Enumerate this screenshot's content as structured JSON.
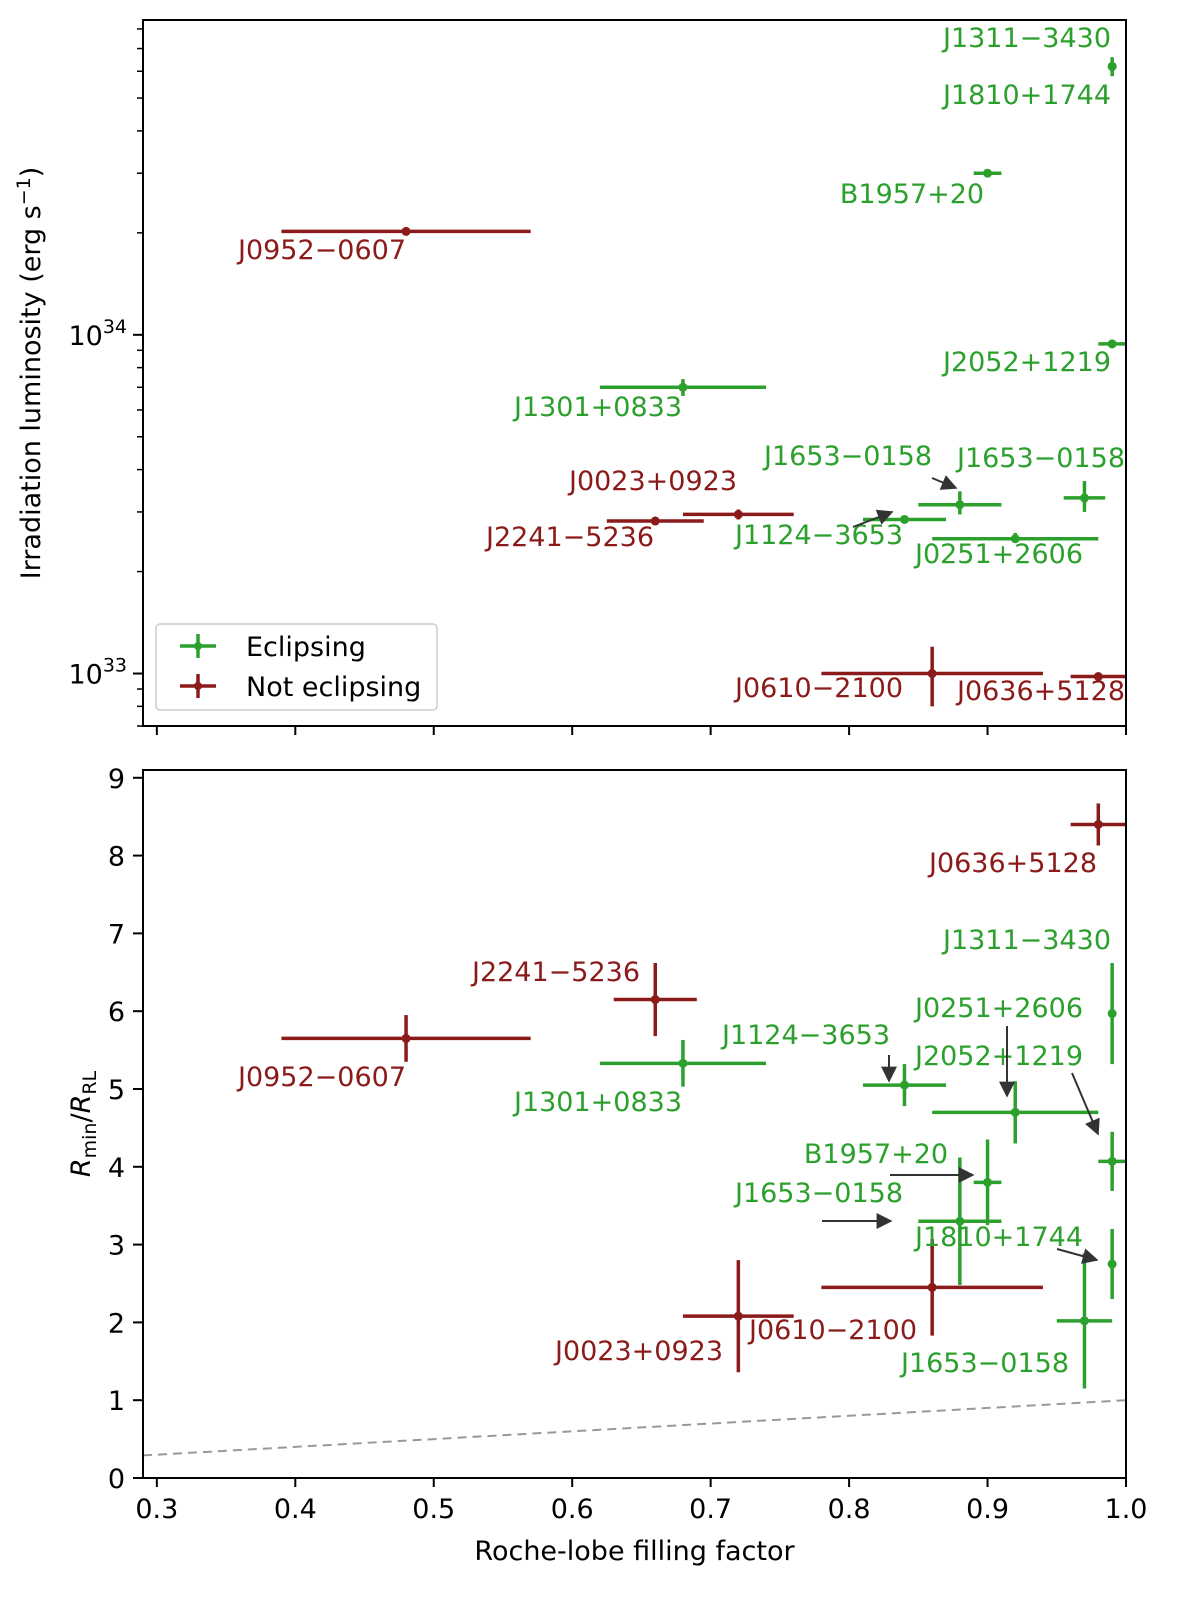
{
  "chart_data": [
    {
      "type": "scatter",
      "panel": "top",
      "xlabel": "",
      "ylabel": "Irradiation luminosity (erg s",
      "ylabel_sup": "−1",
      "ylabel_close": ")",
      "xlim": [
        0.29,
        1.0
      ],
      "ylim": [
        7e+32,
        8.5e+34
      ],
      "yscale": "log",
      "yticks": [
        {
          "value": 1e+33,
          "base": "10",
          "exp": "33"
        },
        {
          "value": 1e+34,
          "base": "10",
          "exp": "34"
        }
      ],
      "legend": {
        "position": "lower-left",
        "entries": [
          {
            "label": "Eclipsing",
            "color": "#2ca02c"
          },
          {
            "label": "Not eclipsing",
            "color": "#8b1a1a"
          }
        ]
      },
      "series": [
        {
          "name": "Eclipsing",
          "color": "#2ca02c",
          "points": [
            {
              "label": "J1311−3430",
              "x": 0.99,
              "xerr": 0.0,
              "y": 6.2e+34,
              "yerr": [
                5.8e+34,
                6.6e+34
              ]
            },
            {
              "label": "J1810+1744",
              "x": 0.99,
              "xerr": 0.0,
              "y": 6.2e+34,
              "yerr": [
                6e+34,
                6.4e+34
              ]
            },
            {
              "label": "B1957+20",
              "x": 0.9,
              "xerr": 0.01,
              "y": 3e+34,
              "yerr": [
                2.95e+34,
                3.05e+34
              ]
            },
            {
              "label": "J2052+1219",
              "x": 0.99,
              "xerr": 0.01,
              "y": 9.4e+33,
              "yerr": [
                9.3e+33,
                9.5e+33
              ]
            },
            {
              "label": "J1301+0833",
              "x": 0.68,
              "xerr": 0.06,
              "y": 7e+33,
              "yerr": [
                6.6e+33,
                7.4e+33
              ]
            },
            {
              "label": "J1653−0158",
              "x": 0.88,
              "xerr": 0.03,
              "y": 3.15e+33,
              "yerr": [
                2.95e+33,
                3.45e+33
              ]
            },
            {
              "label": "J1653−0158",
              "x": 0.97,
              "xerr": 0.015,
              "y": 3.3e+33,
              "yerr": [
                3e+33,
                3.7e+33
              ]
            },
            {
              "label": "J1124−3653",
              "x": 0.84,
              "xerr": 0.03,
              "y": 2.85e+33,
              "yerr": [
                2.8e+33,
                2.9e+33
              ]
            },
            {
              "label": "J0251+2606",
              "x": 0.92,
              "xerr": 0.06,
              "y": 2.5e+33,
              "yerr": [
                2.45e+33,
                2.6e+33
              ]
            }
          ]
        },
        {
          "name": "Not eclipsing",
          "color": "#8b1a1a",
          "points": [
            {
              "label": "J0952−0607",
              "x": 0.48,
              "xerr": 0.09,
              "y": 2.02e+34,
              "yerr": [
                1.97e+34,
                2.07e+34
              ]
            },
            {
              "label": "J0023+0923",
              "x": 0.72,
              "xerr": 0.04,
              "y": 2.95e+33,
              "yerr": [
                2.85e+33,
                3.05e+33
              ]
            },
            {
              "label": "J2241−5236",
              "x": 0.66,
              "xerr": 0.035,
              "y": 2.82e+33,
              "yerr": [
                2.78e+33,
                2.86e+33
              ]
            },
            {
              "label": "J0610−2100",
              "x": 0.86,
              "xerr": 0.08,
              "y": 1e+33,
              "yerr": [
                8e+32,
                1.2e+33
              ]
            },
            {
              "label": "J0636+5128",
              "x": 0.98,
              "xerr": 0.02,
              "y": 9.8e+32,
              "yerr": [
                9.6e+32,
                1e+33
              ]
            }
          ]
        }
      ],
      "annotations": [
        {
          "text": "J1311−3430",
          "series": "Eclipsing"
        },
        {
          "text": "J1810+1744",
          "series": "Eclipsing"
        },
        {
          "text": "B1957+20",
          "series": "Eclipsing"
        },
        {
          "text": "J2052+1219",
          "series": "Eclipsing"
        },
        {
          "text": "J1301+0833",
          "series": "Eclipsing"
        },
        {
          "text": "J1653−0158",
          "series": "Eclipsing"
        },
        {
          "text": "J1653−0158",
          "series": "Eclipsing"
        },
        {
          "text": "J1124−3653",
          "series": "Eclipsing"
        },
        {
          "text": "J0251+2606",
          "series": "Eclipsing"
        },
        {
          "text": "J0952−0607",
          "series": "Not eclipsing"
        },
        {
          "text": "J0023+0923",
          "series": "Not eclipsing"
        },
        {
          "text": "J2241−5236",
          "series": "Not eclipsing"
        },
        {
          "text": "J0610−2100",
          "series": "Not eclipsing"
        },
        {
          "text": "J0636+5128",
          "series": "Not eclipsing"
        }
      ]
    },
    {
      "type": "scatter",
      "panel": "bottom",
      "xlabel": "Roche-lobe filling factor",
      "ylabel_parts": {
        "num": "R",
        "num_sub": "min",
        "sep": "/",
        "den": "R",
        "den_sub": "RL"
      },
      "xlim": [
        0.29,
        1.0
      ],
      "ylim": [
        0,
        9.1
      ],
      "xticks": [
        "0.3",
        "0.4",
        "0.5",
        "0.6",
        "0.7",
        "0.8",
        "0.9",
        "1.0"
      ],
      "yticks": [
        "0",
        "1",
        "2",
        "3",
        "4",
        "5",
        "6",
        "7",
        "8",
        "9"
      ],
      "reference_line": {
        "style": "dashed",
        "color": "#999999",
        "x": [
          0.29,
          1.0
        ],
        "y": [
          0.29,
          1.0
        ]
      },
      "series": [
        {
          "name": "Eclipsing",
          "color": "#2ca02c",
          "points": [
            {
              "label": "J1311−3430",
              "x": 0.99,
              "xerr": 0.0,
              "y": 5.97,
              "yerr": 0.65
            },
            {
              "label": "J0251+2606",
              "x": 0.92,
              "xerr": 0.06,
              "y": 4.7,
              "yerr": 0.4
            },
            {
              "label": "J2052+1219",
              "x": 0.99,
              "xerr": 0.01,
              "y": 4.07,
              "yerr": 0.38
            },
            {
              "label": "J1124−3653",
              "x": 0.84,
              "xerr": 0.03,
              "y": 5.05,
              "yerr": 0.27
            },
            {
              "label": "J1301+0833",
              "x": 0.68,
              "xerr": 0.06,
              "y": 5.33,
              "yerr": 0.3
            },
            {
              "label": "B1957+20",
              "x": 0.9,
              "xerr": 0.01,
              "y": 3.8,
              "yerr": 0.55
            },
            {
              "label": "J1653−0158",
              "x": 0.88,
              "xerr": 0.03,
              "y": 3.3,
              "yerr": 0.82
            },
            {
              "label": "J1810+1744",
              "x": 0.99,
              "xerr": 0.0,
              "y": 2.75,
              "yerr": 0.45
            },
            {
              "label": "J1653−0158",
              "x": 0.97,
              "xerr": 0.02,
              "y": 2.02,
              "yerr": 0.87
            }
          ]
        },
        {
          "name": "Not eclipsing",
          "color": "#8b1a1a",
          "points": [
            {
              "label": "J0636+5128",
              "x": 0.98,
              "xerr": 0.02,
              "y": 8.4,
              "yerr": 0.27
            },
            {
              "label": "J2241−5236",
              "x": 0.66,
              "xerr": 0.03,
              "y": 6.15,
              "yerr": 0.47
            },
            {
              "label": "J0952−0607",
              "x": 0.48,
              "xerr": 0.09,
              "y": 5.65,
              "yerr": 0.3
            },
            {
              "label": "J0610−2100",
              "x": 0.86,
              "xerr": 0.08,
              "y": 2.45,
              "yerr": 0.62
            },
            {
              "label": "J0023+0923",
              "x": 0.72,
              "xerr": 0.04,
              "y": 2.08,
              "yerr": 0.72
            }
          ]
        }
      ],
      "annotations": [
        {
          "text": "J0636+5128",
          "series": "Not eclipsing"
        },
        {
          "text": "J1311−3430",
          "series": "Eclipsing"
        },
        {
          "text": "J2241−5236",
          "series": "Not eclipsing"
        },
        {
          "text": "J0251+2606",
          "series": "Eclipsing"
        },
        {
          "text": "J1124−3653",
          "series": "Eclipsing"
        },
        {
          "text": "J2052+1219",
          "series": "Eclipsing"
        },
        {
          "text": "J0952−0607",
          "series": "Not eclipsing"
        },
        {
          "text": "J1301+0833",
          "series": "Eclipsing"
        },
        {
          "text": "B1957+20",
          "series": "Eclipsing"
        },
        {
          "text": "J1653−0158",
          "series": "Eclipsing"
        },
        {
          "text": "J1810+1744",
          "series": "Eclipsing"
        },
        {
          "text": "J0610−2100",
          "series": "Not eclipsing"
        },
        {
          "text": "J0023+0923",
          "series": "Not eclipsing"
        },
        {
          "text": "J1653−0158",
          "series": "Eclipsing"
        }
      ]
    }
  ]
}
